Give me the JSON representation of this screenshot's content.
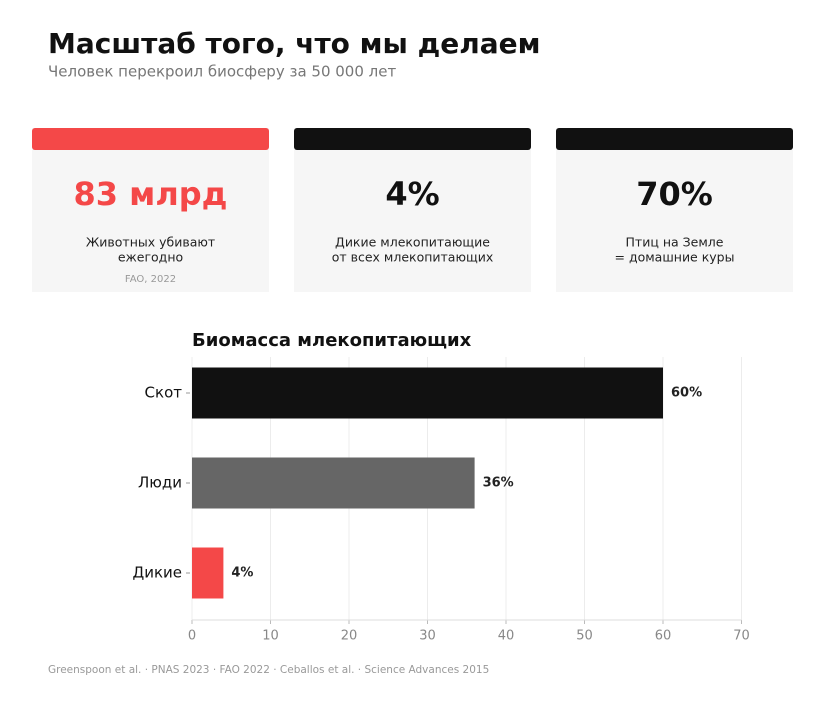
{
  "header": {
    "title": "Масштаб того, что мы делаем",
    "subtitle": "Человек перекроил биосферу за 50 000 лет"
  },
  "cards": [
    {
      "value": "83 млрд",
      "lines": [
        "Животных убивают",
        "ежегодно"
      ],
      "source": "FAO, 2022",
      "color": "#f44848"
    },
    {
      "value": "4%",
      "lines": [
        "Дикие млекопитающие",
        "от всех млекопитающих"
      ],
      "color": "#111111"
    },
    {
      "value": "70%",
      "lines": [
        "Птиц на Земле",
        "= домашние куры"
      ],
      "color": "#111111"
    }
  ],
  "chart_data": {
    "type": "bar",
    "orientation": "horizontal",
    "title": "Биомасса млекопитающих",
    "categories": [
      "Скот",
      "Люди",
      "Дикие"
    ],
    "values": [
      60,
      36,
      4
    ],
    "value_labels": [
      "60%",
      "36%",
      "4%"
    ],
    "colors": [
      "#111111",
      "#666666",
      "#f44848"
    ],
    "xlim": [
      0,
      70
    ],
    "xticks": [
      0,
      10,
      20,
      30,
      40,
      50,
      60,
      70
    ],
    "grid": true
  },
  "footer": "Greenspoon et al. · PNAS 2023 · FAO 2022 · Ceballos et al. · Science Advances 2015"
}
